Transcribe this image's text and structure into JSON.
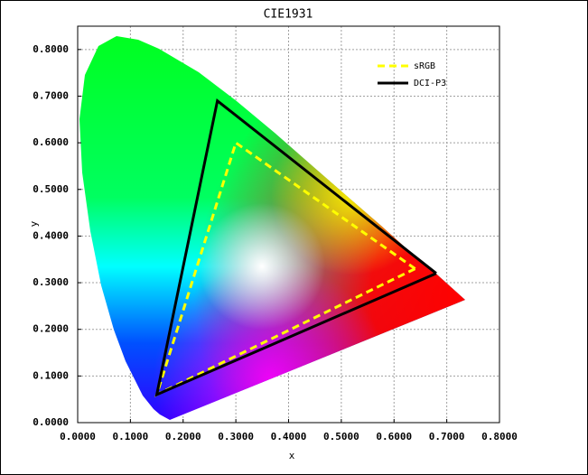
{
  "chart_data": {
    "type": "line",
    "title": "CIE1931",
    "x_label": "x",
    "y_label": "y",
    "xlim": [
      0,
      0.8
    ],
    "ylim": [
      0,
      0.85
    ],
    "xticks": [
      {
        "value": 0,
        "label": "0.0000"
      },
      {
        "value": 0.1,
        "label": "0.1000"
      },
      {
        "value": 0.2,
        "label": "0.2000"
      },
      {
        "value": 0.3,
        "label": "0.3000"
      },
      {
        "value": 0.4,
        "label": "0.4000"
      },
      {
        "value": 0.5,
        "label": "0.5000"
      },
      {
        "value": 0.6,
        "label": "0.6000"
      },
      {
        "value": 0.7,
        "label": "0.7000"
      },
      {
        "value": 0.8,
        "label": "0.8000"
      }
    ],
    "yticks": [
      {
        "value": 0,
        "label": "0.0000"
      },
      {
        "value": 0.1,
        "label": "0.1000"
      },
      {
        "value": 0.2,
        "label": "0.2000"
      },
      {
        "value": 0.3,
        "label": "0.3000"
      },
      {
        "value": 0.4,
        "label": "0.4000"
      },
      {
        "value": 0.5,
        "label": "0.5000"
      },
      {
        "value": 0.6,
        "label": "0.6000"
      },
      {
        "value": 0.7,
        "label": "0.7000"
      },
      {
        "value": 0.8,
        "label": "0.8000"
      }
    ],
    "grid": true,
    "legend": "upper right",
    "series": [
      {
        "name": "sRGB",
        "color": "#ffff00",
        "line_style": "dashed",
        "x": [
          0.64,
          0.3,
          0.15,
          0.64
        ],
        "values": [
          0.33,
          0.6,
          0.06,
          0.33
        ]
      },
      {
        "name": "DCI-P3",
        "color": "#000000",
        "line_style": "solid",
        "x": [
          0.68,
          0.265,
          0.15,
          0.68
        ],
        "values": [
          0.32,
          0.69,
          0.06,
          0.32
        ]
      }
    ]
  }
}
